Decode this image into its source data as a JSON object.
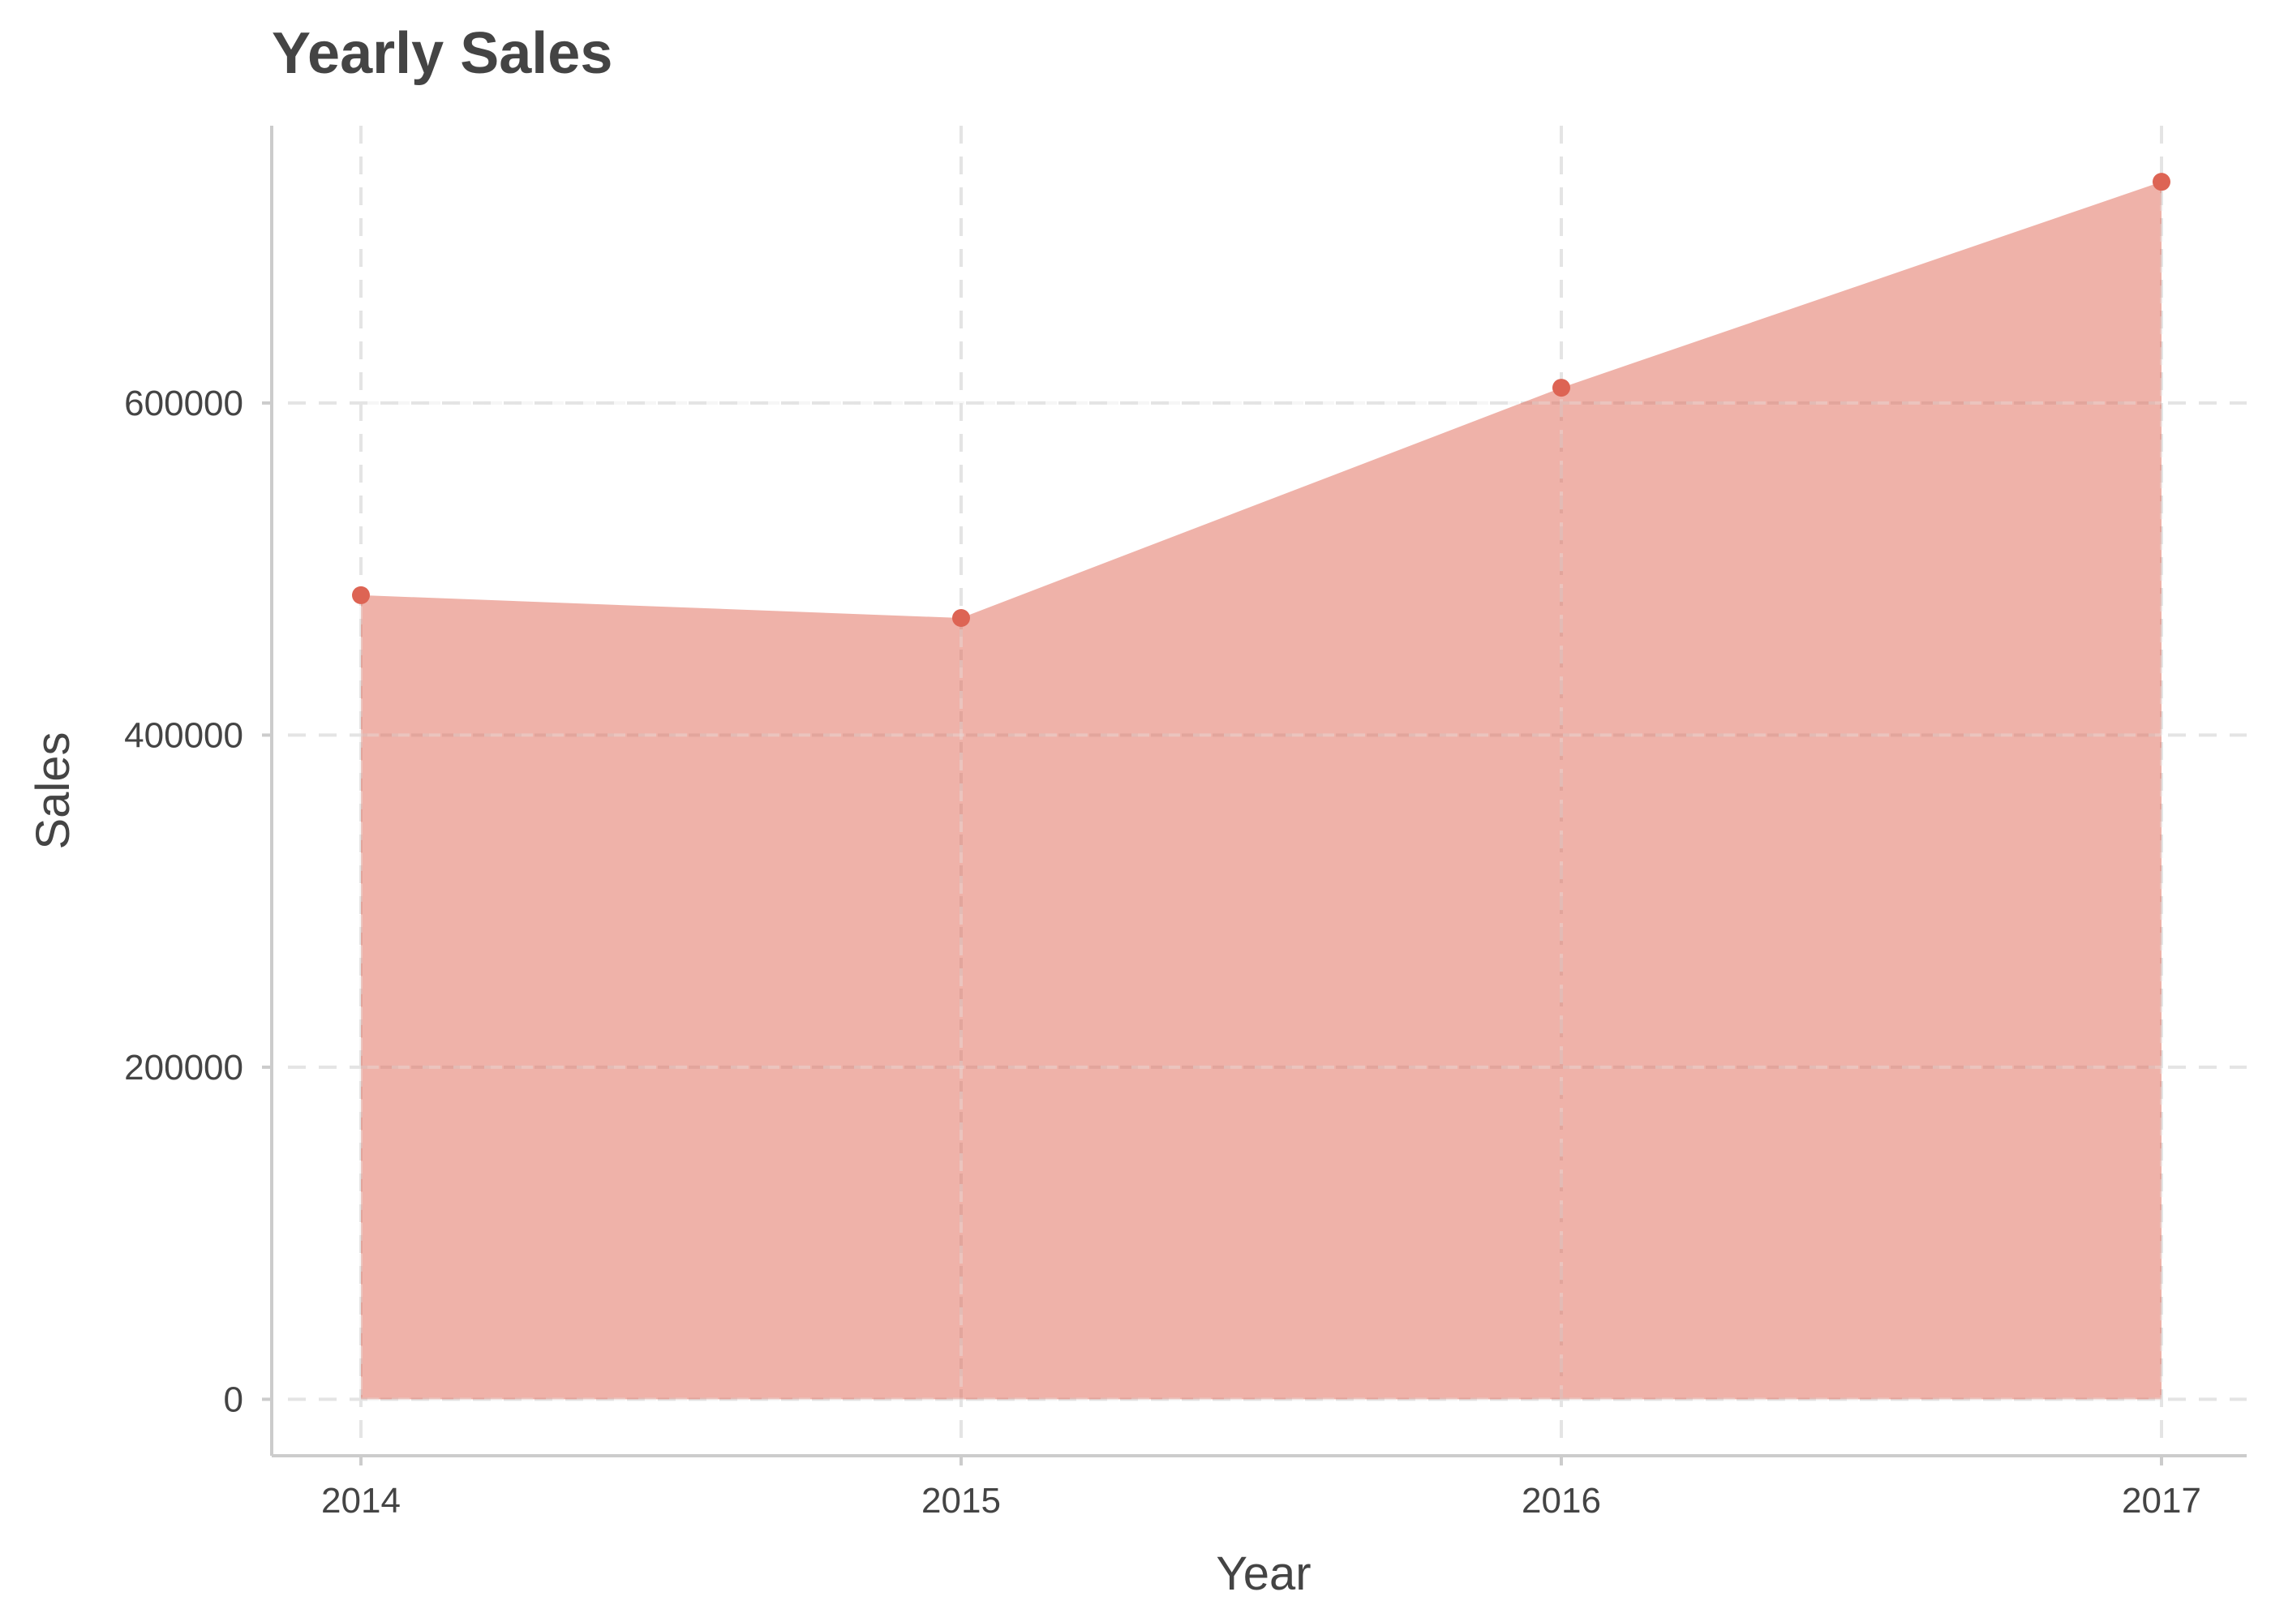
{
  "chart_data": {
    "type": "area",
    "title": "Yearly Sales",
    "xlabel": "Year",
    "ylabel": "Sales",
    "x": [
      "2014",
      "2015",
      "2016",
      "2017"
    ],
    "series": [
      {
        "values": [
          484247,
          470533,
          609206,
          733215
        ]
      }
    ],
    "y_ticks": [
      "0",
      "200000",
      "400000",
      "600000"
    ],
    "y_tick_values": [
      0,
      200000,
      400000,
      600000
    ],
    "ylim": [
      -34000,
      767000
    ],
    "grid": true,
    "legend": "none",
    "colors": {
      "area_fill": "#e06b5a",
      "point": "#dd6454",
      "text": "#444444",
      "axis": "#cccccc",
      "grid": "#e4e4e4"
    }
  }
}
